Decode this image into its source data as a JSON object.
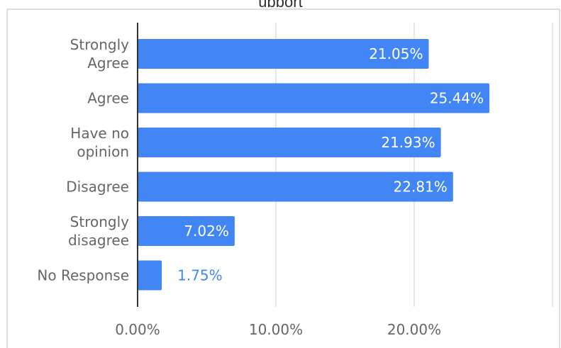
{
  "title_fragment": "upport",
  "chart_data": {
    "type": "bar",
    "orientation": "horizontal",
    "categories": [
      [
        "Strongly",
        "Agree"
      ],
      [
        "Agree"
      ],
      [
        "Have no",
        "opinion"
      ],
      [
        "Disagree"
      ],
      [
        "Strongly",
        "disagree"
      ],
      [
        "No Response"
      ]
    ],
    "values": [
      21.05,
      25.44,
      21.93,
      22.81,
      7.02,
      1.75
    ],
    "data_labels": [
      "21.05%",
      "25.44%",
      "21.93%",
      "22.81%",
      "7.02%",
      "1.75%"
    ],
    "x_ticks": [
      {
        "value": 0,
        "label": "0.00%"
      },
      {
        "value": 10,
        "label": "10.00%"
      },
      {
        "value": 20,
        "label": "20.00%"
      },
      {
        "value": 30,
        "label": ""
      }
    ],
    "xlim": [
      0,
      30
    ],
    "grid": true,
    "bar_color": "#4285f4",
    "label_inside_color": "#ffffff",
    "label_outside_color": "#4285f4",
    "axis_color": "#333333",
    "grid_color": "#cccccc",
    "border_color": "#bdbdbd",
    "text_color": "#666666"
  }
}
